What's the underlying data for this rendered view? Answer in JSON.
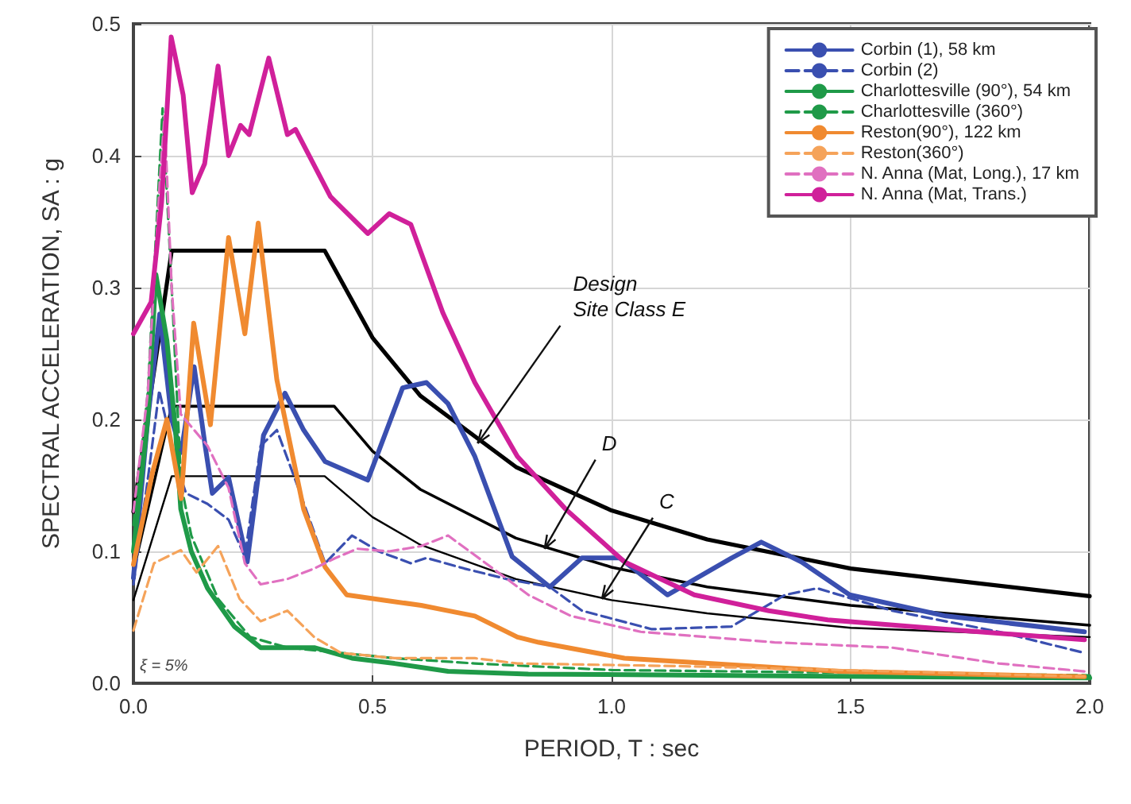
{
  "chart_data": {
    "type": "line",
    "xlabel": "PERIOD, T : sec",
    "ylabel": "SPECTRAL ACCELERATION, SA : g",
    "xlim": [
      0,
      2
    ],
    "ylim": [
      0,
      0.5
    ],
    "xticks": [
      {
        "value": 0,
        "label": "0.0"
      },
      {
        "value": 0.5,
        "label": "0.5"
      },
      {
        "value": 1,
        "label": "1.0"
      },
      {
        "value": 1.5,
        "label": "1.5"
      },
      {
        "value": 2,
        "label": "2.0"
      }
    ],
    "yticks": [
      {
        "value": 0,
        "label": "0.0"
      },
      {
        "value": 0.1,
        "label": "0.1"
      },
      {
        "value": 0.2,
        "label": "0.2"
      },
      {
        "value": 0.3,
        "label": "0.3"
      },
      {
        "value": 0.4,
        "label": "0.4"
      },
      {
        "value": 0.5,
        "label": "0.5"
      }
    ],
    "grid": true,
    "legend": "top right",
    "marker": "none",
    "annotations": [
      {
        "text": "Design\nSite Class E",
        "x": 0.72,
        "y": 0.182
      },
      {
        "text": "D",
        "x": 0.86,
        "y": 0.102
      },
      {
        "text": "C",
        "x": 0.98,
        "y": 0.064
      },
      "ξ = 5%"
    ],
    "series": [
      {
        "name": "Corbin (1), 58 km",
        "color": "#3a4fb0",
        "line_style": "solid",
        "x": [
          0,
          0.03,
          0.055,
          0.08,
          0.1,
          0.127,
          0.15,
          0.165,
          0.199,
          0.238,
          0.272,
          0.317,
          0.356,
          0.401,
          0.49,
          0.513,
          0.563,
          0.613,
          0.658,
          0.714,
          0.792,
          0.871,
          0.938,
          1.017,
          1.117,
          1.251,
          1.313,
          1.397,
          1.498,
          1.699,
          1.989
        ],
        "values": [
          0.08,
          0.2,
          0.28,
          0.2,
          0.175,
          0.24,
          0.18,
          0.144,
          0.156,
          0.092,
          0.188,
          0.22,
          0.192,
          0.168,
          0.154,
          0.176,
          0.224,
          0.228,
          0.212,
          0.172,
          0.096,
          0.073,
          0.095,
          0.095,
          0.067,
          0.095,
          0.107,
          0.092,
          0.067,
          0.051,
          0.039
        ]
      },
      {
        "name": "Corbin (2)",
        "color": "#3a4fb0",
        "line_style": "dashed",
        "x": [
          0,
          0.032,
          0.054,
          0.088,
          0.11,
          0.155,
          0.199,
          0.233,
          0.266,
          0.3,
          0.345,
          0.401,
          0.457,
          0.513,
          0.58,
          0.613,
          0.692,
          0.781,
          0.871,
          0.938,
          1.084,
          1.251,
          1.363,
          1.43,
          1.587,
          1.81,
          1.989
        ],
        "values": [
          0.075,
          0.16,
          0.222,
          0.168,
          0.144,
          0.136,
          0.124,
          0.096,
          0.18,
          0.192,
          0.148,
          0.091,
          0.112,
          0.1,
          0.091,
          0.095,
          0.087,
          0.079,
          0.073,
          0.055,
          0.041,
          0.043,
          0.067,
          0.072,
          0.055,
          0.039,
          0.023
        ]
      },
      {
        "name": "Charlottesville (90°), 54 km",
        "color": "#1f9a48",
        "line_style": "solid",
        "x": [
          0,
          0.03,
          0.047,
          0.07,
          0.088,
          0.099,
          0.121,
          0.155,
          0.211,
          0.266,
          0.378,
          0.457,
          0.546,
          0.658,
          0.826,
          1.2,
          1.6,
          2.0
        ],
        "values": [
          0.1,
          0.2,
          0.31,
          0.26,
          0.192,
          0.132,
          0.1,
          0.072,
          0.043,
          0.027,
          0.027,
          0.019,
          0.015,
          0.009,
          0.007,
          0.006,
          0.005,
          0.004
        ]
      },
      {
        "name": "Charlottesville (360°)",
        "color": "#1f9a48",
        "line_style": "dashed",
        "x": [
          0,
          0.03,
          0.061,
          0.08,
          0.1,
          0.121,
          0.177,
          0.244,
          0.322,
          0.434,
          0.546,
          0.714,
          1.0,
          1.5,
          2.0
        ],
        "values": [
          0.12,
          0.22,
          0.436,
          0.3,
          0.15,
          0.112,
          0.064,
          0.035,
          0.027,
          0.023,
          0.019,
          0.015,
          0.01,
          0.008,
          0.006
        ]
      },
      {
        "name": "Reston(90°), 122 km",
        "color": "#f08a30",
        "line_style": "solid",
        "x": [
          0,
          0.04,
          0.07,
          0.1,
          0.126,
          0.161,
          0.199,
          0.233,
          0.261,
          0.3,
          0.356,
          0.401,
          0.446,
          0.524,
          0.602,
          0.714,
          0.803,
          0.848,
          1.027,
          1.475,
          1.989
        ],
        "values": [
          0.09,
          0.16,
          0.2,
          0.14,
          0.273,
          0.196,
          0.338,
          0.265,
          0.349,
          0.23,
          0.132,
          0.088,
          0.067,
          0.063,
          0.059,
          0.051,
          0.035,
          0.031,
          0.019,
          0.009,
          0.005
        ]
      },
      {
        "name": "Reston(360°)",
        "color": "#f5a35a",
        "line_style": "dashed",
        "x": [
          0,
          0.043,
          0.099,
          0.132,
          0.177,
          0.222,
          0.266,
          0.322,
          0.378,
          0.434,
          0.546,
          0.714,
          0.803,
          1.14,
          1.587,
          1.989
        ],
        "values": [
          0.04,
          0.091,
          0.101,
          0.084,
          0.104,
          0.064,
          0.047,
          0.055,
          0.035,
          0.023,
          0.019,
          0.019,
          0.015,
          0.013,
          0.009,
          0.005
        ]
      },
      {
        "name": "N. Anna (Mat, Long.), 17 km",
        "color": "#e070c0",
        "line_style": "dashed",
        "x": [
          0,
          0.03,
          0.055,
          0.065,
          0.08,
          0.099,
          0.155,
          0.199,
          0.233,
          0.266,
          0.322,
          0.378,
          0.423,
          0.468,
          0.535,
          0.602,
          0.658,
          0.737,
          0.826,
          0.915,
          1.061,
          1.341,
          1.587,
          1.81,
          1.989
        ],
        "values": [
          0.13,
          0.22,
          0.38,
          0.43,
          0.3,
          0.204,
          0.18,
          0.148,
          0.091,
          0.075,
          0.079,
          0.087,
          0.095,
          0.102,
          0.1,
          0.104,
          0.112,
          0.091,
          0.067,
          0.051,
          0.039,
          0.031,
          0.027,
          0.015,
          0.009
        ]
      },
      {
        "name": "N. Anna (Mat, Trans.)",
        "color": "#d0209a",
        "line_style": "solid",
        "x": [
          0,
          0.037,
          0.059,
          0.079,
          0.104,
          0.123,
          0.149,
          0.177,
          0.199,
          0.224,
          0.242,
          0.283,
          0.322,
          0.339,
          0.412,
          0.49,
          0.535,
          0.58,
          0.647,
          0.714,
          0.803,
          0.904,
          1.027,
          1.173,
          1.329,
          1.452,
          1.698,
          1.989
        ],
        "values": [
          0.265,
          0.289,
          0.365,
          0.49,
          0.446,
          0.372,
          0.394,
          0.468,
          0.4,
          0.423,
          0.416,
          0.474,
          0.416,
          0.42,
          0.369,
          0.341,
          0.356,
          0.348,
          0.281,
          0.228,
          0.172,
          0.132,
          0.092,
          0.067,
          0.055,
          0.048,
          0.041,
          0.033
        ]
      },
      {
        "color": "#000000",
        "line_style": "solid",
        "x": [
          0,
          0.08,
          0.4,
          0.5,
          0.6,
          0.8,
          1.0,
          1.2,
          1.5,
          2.0
        ],
        "values": [
          0.13,
          0.328,
          0.328,
          0.262,
          0.218,
          0.164,
          0.131,
          0.109,
          0.087,
          0.066
        ]
      },
      {
        "color": "#000000",
        "line_style": "solid",
        "x": [
          0,
          0.08,
          0.42,
          0.5,
          0.6,
          0.8,
          1.0,
          1.2,
          1.5,
          2.0
        ],
        "values": [
          0.085,
          0.21,
          0.21,
          0.176,
          0.147,
          0.11,
          0.088,
          0.073,
          0.059,
          0.044
        ]
      },
      {
        "color": "#000000",
        "line_style": "solid",
        "x": [
          0,
          0.08,
          0.4,
          0.5,
          0.6,
          0.8,
          1.0,
          1.2,
          1.5,
          2.0
        ],
        "values": [
          0.063,
          0.157,
          0.157,
          0.126,
          0.105,
          0.079,
          0.063,
          0.053,
          0.042,
          0.035
        ]
      }
    ]
  }
}
